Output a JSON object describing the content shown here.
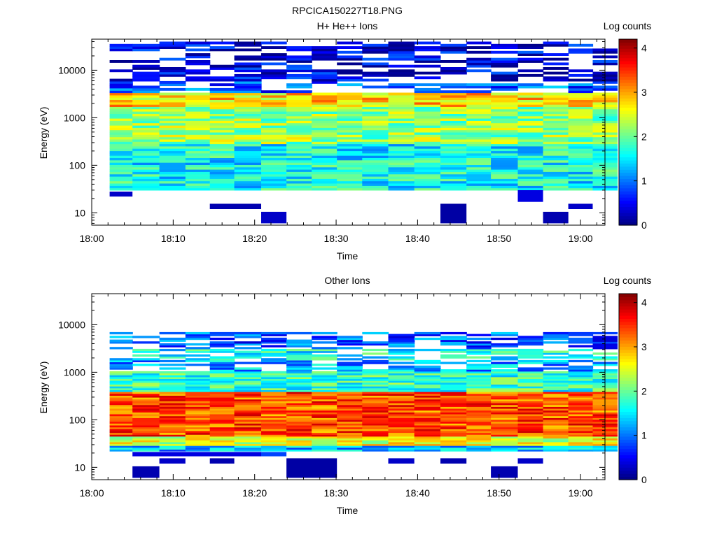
{
  "figure": {
    "filename": "RPCICA150227T18.PNG"
  },
  "colors": {
    "jet": [
      "#00007f",
      "#0000ff",
      "#007fff",
      "#00ffff",
      "#7fff7f",
      "#ffff00",
      "#ff7f00",
      "#ff0000",
      "#7f0000"
    ]
  },
  "chart_data": [
    {
      "type": "heatmap",
      "title": "H+ He++ Ions",
      "xlabel": "Time",
      "ylabel": "Energy (eV)",
      "x_ticks": [
        "18:00",
        "18:10",
        "18:20",
        "18:30",
        "18:40",
        "18:50",
        "19:00"
      ],
      "x_range_minutes": [
        0,
        63
      ],
      "y_scale": "log",
      "y_range": [
        5.5,
        45000
      ],
      "y_ticks": [
        "10",
        "100",
        "1000",
        "10000"
      ],
      "time_bins_minutes": [
        2.2,
        5.0,
        8.3,
        11.5,
        14.5,
        17.5,
        20.8,
        23.9,
        27.0,
        30.1,
        33.2,
        36.4,
        39.6,
        42.8,
        46.0,
        49.0,
        52.3,
        55.4,
        58.5,
        61.5
      ],
      "colorbar": {
        "label": "Log counts",
        "range": [
          0,
          4.2
        ],
        "ticks": [
          "0",
          "1",
          "2",
          "3",
          "4"
        ]
      },
      "bands": [
        {
          "e_min": 30,
          "e_max": 280,
          "value": 1.6
        },
        {
          "e_min": 280,
          "e_max": 1700,
          "value": 2.2
        },
        {
          "e_min": 1700,
          "e_max": 3200,
          "value": 2.8
        },
        {
          "e_min": 3200,
          "e_max": 6000,
          "value": 0.9
        },
        {
          "e_min": 6000,
          "e_max": 40000,
          "value": 0.4
        }
      ],
      "sparse_above": 3200,
      "low_blocks": [
        {
          "t0": 14.5,
          "t1": 20.8,
          "e_min": 12,
          "e_max": 15.5,
          "value": 0.2
        },
        {
          "t0": 20.8,
          "t1": 23.9,
          "e_min": 6,
          "e_max": 10.5,
          "value": 0.3
        },
        {
          "t0": 42.8,
          "t1": 46.0,
          "e_min": 6,
          "e_max": 15.5,
          "value": 0.15
        },
        {
          "t0": 55.4,
          "t1": 58.5,
          "e_min": 6,
          "e_max": 10.5,
          "value": 0.2
        },
        {
          "t0": 58.5,
          "t1": 61.5,
          "e_min": 12,
          "e_max": 15.5,
          "value": 0.3
        },
        {
          "t0": 2.2,
          "t1": 5.0,
          "e_min": 22,
          "e_max": 28,
          "value": 0.3
        },
        {
          "t0": 52.3,
          "t1": 55.4,
          "e_min": 17,
          "e_max": 30,
          "value": 0.4
        }
      ]
    },
    {
      "type": "heatmap",
      "title": "Other Ions",
      "xlabel": "Time",
      "ylabel": "Energy (eV)",
      "x_ticks": [
        "18:00",
        "18:10",
        "18:20",
        "18:30",
        "18:40",
        "18:50",
        "19:00"
      ],
      "x_range_minutes": [
        0,
        63
      ],
      "y_scale": "log",
      "y_range": [
        5.5,
        45000
      ],
      "y_ticks": [
        "10",
        "100",
        "1000",
        "10000"
      ],
      "time_bins_minutes": [
        2.2,
        5.0,
        8.3,
        11.5,
        14.5,
        17.5,
        20.8,
        23.9,
        27.0,
        30.1,
        33.2,
        36.4,
        39.6,
        42.8,
        46.0,
        49.0,
        52.3,
        55.4,
        58.5,
        61.5
      ],
      "colorbar": {
        "label": "Log counts",
        "range": [
          0,
          4.2
        ],
        "ticks": [
          "0",
          "1",
          "2",
          "3",
          "4"
        ]
      },
      "bands": [
        {
          "e_min": 22,
          "e_max": 28,
          "value": 1.3
        },
        {
          "e_min": 28,
          "e_max": 45,
          "value": 2.5
        },
        {
          "e_min": 45,
          "e_max": 400,
          "value": 3.35
        },
        {
          "e_min": 400,
          "e_max": 1100,
          "value": 1.8
        },
        {
          "e_min": 1100,
          "e_max": 1800,
          "value": 1.2
        },
        {
          "e_min": 1800,
          "e_max": 3200,
          "value": 1.6
        },
        {
          "e_min": 3200,
          "e_max": 7000,
          "value": 0.9
        }
      ],
      "sparse_above": 1100,
      "low_blocks": [
        {
          "t0": 5.0,
          "t1": 8.3,
          "e_min": 6,
          "e_max": 10.5,
          "value": 0.2
        },
        {
          "t0": 8.3,
          "t1": 11.5,
          "e_min": 12,
          "e_max": 15.5,
          "value": 0.3
        },
        {
          "t0": 14.5,
          "t1": 17.5,
          "e_min": 12,
          "e_max": 15.5,
          "value": 0.2
        },
        {
          "t0": 23.9,
          "t1": 30.1,
          "e_min": 6,
          "e_max": 15.5,
          "value": 0.15
        },
        {
          "t0": 36.4,
          "t1": 39.6,
          "e_min": 12,
          "e_max": 15.5,
          "value": 0.3
        },
        {
          "t0": 42.8,
          "t1": 46.0,
          "e_min": 12,
          "e_max": 15.5,
          "value": 0.2
        },
        {
          "t0": 49.0,
          "t1": 52.3,
          "e_min": 6,
          "e_max": 10.5,
          "value": 0.2
        },
        {
          "t0": 52.3,
          "t1": 55.4,
          "e_min": 12,
          "e_max": 15.5,
          "value": 0.3
        },
        {
          "t0": 5.0,
          "t1": 20.8,
          "e_min": 17,
          "e_max": 21,
          "value": 0.4
        },
        {
          "t0": 20.8,
          "t1": 23.9,
          "e_min": 17,
          "e_max": 21,
          "value": 0.8
        }
      ]
    }
  ]
}
